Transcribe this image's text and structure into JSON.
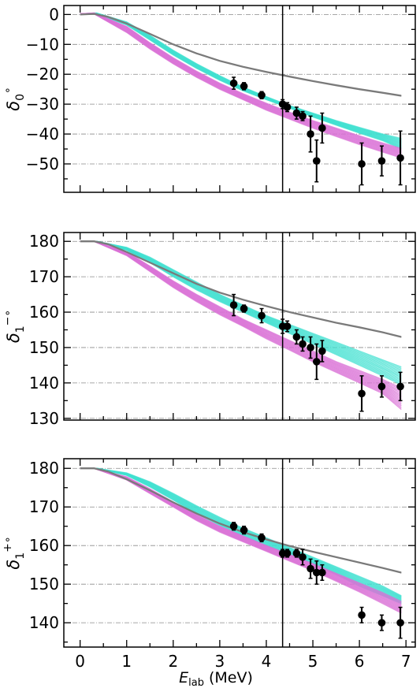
{
  "chart_data": [
    {
      "type": "line",
      "panel": "top",
      "ylabel_base": "δ",
      "ylabel_sub": "0",
      "ylabel_sup": "∘",
      "xlim": [
        -0.35,
        7.2
      ],
      "ylim": [
        -59.5,
        3
      ],
      "yticks": [
        0,
        -10,
        -20,
        -30,
        -40,
        -50
      ],
      "yticklabels": [
        "0",
        "−10",
        "−20",
        "−30",
        "−40",
        "−50"
      ],
      "xticks": [
        0,
        1,
        2,
        3,
        4,
        5,
        6,
        7
      ],
      "grid": "y-dashdot",
      "vline_x": 4.35,
      "bands": [
        {
          "name": "",
          "color": "#40e0d0",
          "lower": [
            [
              0.35,
              0.2
            ],
            [
              1,
              -3.5
            ],
            [
              1.5,
              -8.5
            ],
            [
              2,
              -13.5
            ],
            [
              2.5,
              -18
            ],
            [
              3,
              -22
            ],
            [
              3.5,
              -25.5
            ],
            [
              4,
              -28.5
            ],
            [
              4.5,
              -31.3
            ],
            [
              5,
              -34.3
            ],
            [
              5.5,
              -37
            ],
            [
              6,
              -39.7
            ],
            [
              6.5,
              -42.2
            ],
            [
              6.9,
              -45
            ]
          ],
          "upper": [
            [
              0.35,
              0.5
            ],
            [
              1,
              -2.5
            ],
            [
              1.5,
              -7
            ],
            [
              2,
              -12
            ],
            [
              2.5,
              -16.5
            ],
            [
              3,
              -20.5
            ],
            [
              3.5,
              -24.3
            ],
            [
              4,
              -27.5
            ],
            [
              4.5,
              -30.5
            ],
            [
              5,
              -33
            ],
            [
              5.5,
              -35.5
            ],
            [
              6,
              -37.8
            ],
            [
              6.5,
              -40
            ],
            [
              6.9,
              -41.5
            ]
          ]
        },
        {
          "name": "",
          "color": "#da70d6",
          "lower": [
            [
              0.3,
              0.2
            ],
            [
              1,
              -6
            ],
            [
              1.5,
              -11.5
            ],
            [
              2,
              -16.5
            ],
            [
              2.5,
              -21
            ],
            [
              3,
              -25
            ],
            [
              3.5,
              -28.5
            ],
            [
              4,
              -32
            ],
            [
              4.5,
              -35
            ],
            [
              5,
              -38
            ],
            [
              5.5,
              -40.8
            ],
            [
              6,
              -43.5
            ],
            [
              6.5,
              -46
            ],
            [
              6.9,
              -48
            ]
          ],
          "upper": [
            [
              0.3,
              0.5
            ],
            [
              1,
              -4
            ],
            [
              1.5,
              -9.5
            ],
            [
              2,
              -14.5
            ],
            [
              2.5,
              -19
            ],
            [
              3,
              -23
            ],
            [
              3.5,
              -26.5
            ],
            [
              4,
              -29.7
            ],
            [
              4.5,
              -32.7
            ],
            [
              5,
              -35.5
            ],
            [
              5.5,
              -38
            ],
            [
              6,
              -40.6
            ],
            [
              6.5,
              -43
            ],
            [
              6.9,
              -44.8
            ]
          ]
        }
      ],
      "gray_line": [
        [
          0,
          0
        ],
        [
          0.3,
          0.2
        ],
        [
          0.6,
          -0.8
        ],
        [
          1,
          -3
        ],
        [
          1.5,
          -6.5
        ],
        [
          2,
          -10
        ],
        [
          2.5,
          -13
        ],
        [
          3,
          -15.5
        ],
        [
          3.5,
          -17.5
        ],
        [
          4,
          -19.2
        ],
        [
          4.5,
          -20.8
        ],
        [
          5,
          -22.3
        ],
        [
          5.5,
          -23.7
        ],
        [
          6,
          -25
        ],
        [
          6.5,
          -26.2
        ],
        [
          6.9,
          -27.2
        ]
      ],
      "points": [
        {
          "x": 3.3,
          "y": -23,
          "err": 2
        },
        {
          "x": 3.52,
          "y": -24,
          "err": 1.2
        },
        {
          "x": 3.9,
          "y": -27,
          "err": 1.2
        },
        {
          "x": 4.35,
          "y": -30,
          "err": 1.5
        },
        {
          "x": 4.45,
          "y": -31,
          "err": 1.5
        },
        {
          "x": 4.65,
          "y": -33,
          "err": 2
        },
        {
          "x": 4.78,
          "y": -34,
          "err": 1.5
        },
        {
          "x": 4.95,
          "y": -40,
          "err": 6
        },
        {
          "x": 5.08,
          "y": -49,
          "err": 7
        },
        {
          "x": 5.2,
          "y": -38,
          "err": 5
        },
        {
          "x": 6.05,
          "y": -50,
          "err": 7
        },
        {
          "x": 6.48,
          "y": -49,
          "err": 5
        },
        {
          "x": 6.88,
          "y": -48,
          "err": 9
        }
      ]
    },
    {
      "type": "line",
      "panel": "middle",
      "ylabel_base": "δ",
      "ylabel_sub": "1",
      "ylabel_sup": "−∘",
      "xlim": [
        -0.35,
        7.2
      ],
      "ylim": [
        129.5,
        182.5
      ],
      "yticks": [
        180,
        170,
        160,
        150,
        140,
        130
      ],
      "yticklabels": [
        "180",
        "170",
        "160",
        "150",
        "140",
        "130"
      ],
      "xticks": [
        0,
        1,
        2,
        3,
        4,
        5,
        6,
        7
      ],
      "grid": "y-dashdot",
      "vline_x": 4.35,
      "bands": [
        {
          "name": "",
          "color": "#40e0d0",
          "lower": [
            [
              0.35,
              180
            ],
            [
              1,
              177.5
            ],
            [
              1.5,
              174
            ],
            [
              2,
              170
            ],
            [
              2.5,
              166.3
            ],
            [
              3,
              163
            ],
            [
              3.5,
              160
            ],
            [
              4,
              157
            ],
            [
              4.5,
              154
            ],
            [
              5,
              151
            ],
            [
              5.5,
              148
            ],
            [
              6,
              145
            ],
            [
              6.5,
              142
            ],
            [
              6.9,
              139.5
            ]
          ],
          "upper": [
            [
              0.35,
              180
            ],
            [
              1,
              178.3
            ],
            [
              1.5,
              175.5
            ],
            [
              2,
              172
            ],
            [
              2.5,
              168.5
            ],
            [
              3,
              165
            ],
            [
              3.5,
              162
            ],
            [
              4,
              159
            ],
            [
              4.5,
              156.5
            ],
            [
              5,
              154
            ],
            [
              5.5,
              151.5
            ],
            [
              6,
              149
            ],
            [
              6.5,
              146.5
            ],
            [
              6.9,
              144.5
            ]
          ]
        },
        {
          "name": "",
          "color": "#da70d6",
          "lower": [
            [
              0.3,
              180
            ],
            [
              1,
              176
            ],
            [
              1.5,
              171.5
            ],
            [
              2,
              167
            ],
            [
              2.5,
              163
            ],
            [
              3,
              159.3
            ],
            [
              3.5,
              156
            ],
            [
              4,
              152.5
            ],
            [
              4.5,
              149.3
            ],
            [
              5,
              146
            ],
            [
              5.5,
              143
            ],
            [
              6,
              140
            ],
            [
              6.5,
              137
            ],
            [
              6.9,
              132.5
            ]
          ],
          "upper": [
            [
              0.3,
              180
            ],
            [
              1,
              177
            ],
            [
              1.5,
              173
            ],
            [
              2,
              168.8
            ],
            [
              2.5,
              165
            ],
            [
              3,
              161.5
            ],
            [
              3.5,
              158
            ],
            [
              4,
              155
            ],
            [
              4.5,
              152
            ],
            [
              5,
              149
            ],
            [
              5.5,
              146
            ],
            [
              6,
              143.5
            ],
            [
              6.5,
              141
            ],
            [
              6.9,
              138.5
            ]
          ]
        }
      ],
      "gray_line": [
        [
          0,
          180
        ],
        [
          0.3,
          180
        ],
        [
          0.6,
          179.2
        ],
        [
          1,
          177
        ],
        [
          1.5,
          174
        ],
        [
          2,
          171
        ],
        [
          2.5,
          168
        ],
        [
          3,
          165.5
        ],
        [
          3.5,
          163.5
        ],
        [
          4,
          161.7
        ],
        [
          4.5,
          160
        ],
        [
          5,
          158.5
        ],
        [
          5.5,
          157
        ],
        [
          6,
          155.7
        ],
        [
          6.5,
          154.3
        ],
        [
          6.9,
          153
        ]
      ],
      "points": [
        {
          "x": 3.3,
          "y": 162,
          "err": 3
        },
        {
          "x": 3.52,
          "y": 161,
          "err": 1
        },
        {
          "x": 3.9,
          "y": 159,
          "err": 2
        },
        {
          "x": 4.35,
          "y": 156,
          "err": 2
        },
        {
          "x": 4.45,
          "y": 156,
          "err": 1.5
        },
        {
          "x": 4.65,
          "y": 153,
          "err": 2
        },
        {
          "x": 4.78,
          "y": 151,
          "err": 2
        },
        {
          "x": 4.95,
          "y": 150,
          "err": 3
        },
        {
          "x": 5.08,
          "y": 146,
          "err": 5
        },
        {
          "x": 5.2,
          "y": 149,
          "err": 3
        },
        {
          "x": 6.05,
          "y": 137,
          "err": 5
        },
        {
          "x": 6.48,
          "y": 139,
          "err": 3
        },
        {
          "x": 6.88,
          "y": 139,
          "err": 4
        }
      ]
    },
    {
      "type": "line",
      "panel": "bottom",
      "ylabel_base": "δ",
      "ylabel_sub": "1",
      "ylabel_sup": "+∘",
      "xlabel_base": "E",
      "xlabel_sub": "lab",
      "xlabel_unit": " (MeV)",
      "xlim": [
        -0.35,
        7.2
      ],
      "ylim": [
        133.7,
        182.5
      ],
      "yticks": [
        180,
        170,
        160,
        150,
        140
      ],
      "yticklabels": [
        "180",
        "170",
        "160",
        "150",
        "140"
      ],
      "xticks": [
        0,
        1,
        2,
        3,
        4,
        5,
        6,
        7
      ],
      "xticklabels": [
        "0",
        "1",
        "2",
        "3",
        "4",
        "5",
        "6",
        "7"
      ],
      "grid": "y-dashdot",
      "vline_x": 4.35,
      "bands": [
        {
          "name": "",
          "color": "#40e0d0",
          "lower": [
            [
              0.35,
              180
            ],
            [
              1,
              178.2
            ],
            [
              1.5,
              175.2
            ],
            [
              2,
              171.8
            ],
            [
              2.5,
              168.3
            ],
            [
              3,
              165.2
            ],
            [
              3.5,
              162.5
            ],
            [
              4,
              160
            ],
            [
              4.5,
              157.7
            ],
            [
              5,
              155.3
            ],
            [
              5.5,
              152.5
            ],
            [
              6,
              149.5
            ],
            [
              6.5,
              147
            ],
            [
              6.9,
              145
            ]
          ],
          "upper": [
            [
              0.35,
              180
            ],
            [
              1,
              178.8
            ],
            [
              1.5,
              176.5
            ],
            [
              2,
              173.5
            ],
            [
              2.5,
              170.3
            ],
            [
              3,
              167.3
            ],
            [
              3.5,
              164.5
            ],
            [
              4,
              162
            ],
            [
              4.5,
              159.5
            ],
            [
              5,
              157
            ],
            [
              5.5,
              154.5
            ],
            [
              6,
              152
            ],
            [
              6.5,
              149.5
            ],
            [
              6.9,
              147
            ]
          ]
        },
        {
          "name": "",
          "color": "#da70d6",
          "lower": [
            [
              0.3,
              180
            ],
            [
              1,
              177
            ],
            [
              1.5,
              173.5
            ],
            [
              2,
              170
            ],
            [
              2.5,
              166.5
            ],
            [
              3,
              163.5
            ],
            [
              3.5,
              161
            ],
            [
              4,
              158.5
            ],
            [
              4.5,
              156
            ],
            [
              5,
              153.5
            ],
            [
              5.5,
              150.8
            ],
            [
              6,
              148
            ],
            [
              6.5,
              145
            ],
            [
              6.9,
              142.5
            ]
          ],
          "upper": [
            [
              0.3,
              180
            ],
            [
              1,
              177.8
            ],
            [
              1.5,
              174.7
            ],
            [
              2,
              171.3
            ],
            [
              2.5,
              168
            ],
            [
              3,
              165
            ],
            [
              3.5,
              162.5
            ],
            [
              4,
              160
            ],
            [
              4.5,
              157.7
            ],
            [
              5,
              155.3
            ],
            [
              5.5,
              152.8
            ],
            [
              6,
              150.3
            ],
            [
              6.5,
              147.8
            ],
            [
              6.9,
              145.5
            ]
          ]
        }
      ],
      "gray_line": [
        [
          0,
          180
        ],
        [
          0.3,
          180
        ],
        [
          0.6,
          179.2
        ],
        [
          1,
          177.2
        ],
        [
          1.5,
          174.3
        ],
        [
          2,
          171.2
        ],
        [
          2.5,
          168.3
        ],
        [
          3,
          165.7
        ],
        [
          3.5,
          163.5
        ],
        [
          4,
          161.6
        ],
        [
          4.5,
          159.9
        ],
        [
          5,
          158.4
        ],
        [
          5.5,
          157
        ],
        [
          6,
          155.6
        ],
        [
          6.5,
          154.2
        ],
        [
          6.9,
          153
        ]
      ],
      "points": [
        {
          "x": 3.3,
          "y": 165,
          "err": 1
        },
        {
          "x": 3.52,
          "y": 164,
          "err": 1
        },
        {
          "x": 3.9,
          "y": 162,
          "err": 1
        },
        {
          "x": 4.35,
          "y": 158,
          "err": 1
        },
        {
          "x": 4.45,
          "y": 158,
          "err": 1
        },
        {
          "x": 4.65,
          "y": 158,
          "err": 1
        },
        {
          "x": 4.78,
          "y": 157,
          "err": 2
        },
        {
          "x": 4.95,
          "y": 154,
          "err": 2.5
        },
        {
          "x": 5.08,
          "y": 153,
          "err": 3
        },
        {
          "x": 5.2,
          "y": 153,
          "err": 2
        },
        {
          "x": 6.05,
          "y": 142,
          "err": 2
        },
        {
          "x": 6.48,
          "y": 140,
          "err": 2
        },
        {
          "x": 6.88,
          "y": 140,
          "err": 4
        }
      ]
    }
  ]
}
